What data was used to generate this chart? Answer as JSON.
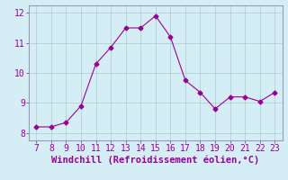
{
  "x": [
    7,
    8,
    9,
    10,
    11,
    12,
    13,
    14,
    15,
    16,
    17,
    18,
    19,
    20,
    21,
    22,
    23
  ],
  "y": [
    8.2,
    8.2,
    8.35,
    8.9,
    10.3,
    10.85,
    11.5,
    11.5,
    11.9,
    11.2,
    9.75,
    9.35,
    8.8,
    9.2,
    9.2,
    9.05,
    9.35
  ],
  "line_color": "#990099",
  "marker": "D",
  "marker_size": 2.5,
  "bg_color": "#d5eef5",
  "grid_color": "#aacccc",
  "border_color": "#9999bb",
  "xlabel": "Windchill (Refroidissement éolien,°C)",
  "xlabel_color": "#990099",
  "xlabel_fontsize": 7.5,
  "tick_color": "#990099",
  "tick_fontsize": 7,
  "ylim": [
    7.75,
    12.25
  ],
  "xlim": [
    6.5,
    23.5
  ],
  "yticks": [
    8,
    9,
    10,
    11,
    12
  ],
  "xticks": [
    7,
    8,
    9,
    10,
    11,
    12,
    13,
    14,
    15,
    16,
    17,
    18,
    19,
    20,
    21,
    22,
    23
  ]
}
